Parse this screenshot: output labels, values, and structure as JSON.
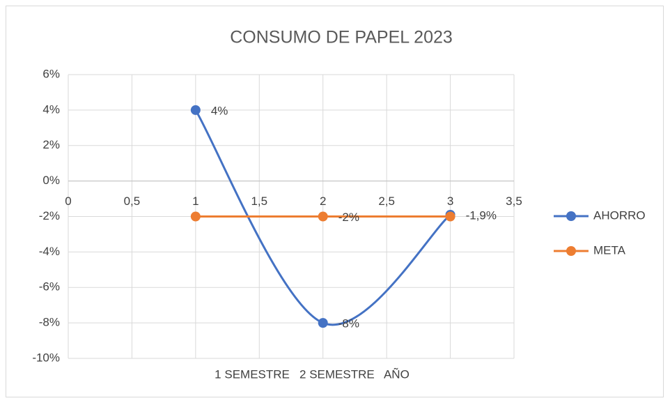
{
  "chart_data": {
    "type": "scatter-smooth",
    "title": "CONSUMO DE PAPEL 2023",
    "x_label": "1 SEMESTRE   2 SEMESTRE   AÑO",
    "series": [
      {
        "name": "AHORRO",
        "color": "#4472c4",
        "x": [
          1,
          2,
          3
        ],
        "values": [
          4,
          -8,
          -1.9
        ],
        "value_labels": [
          "4%",
          "-8%",
          "-1,9%"
        ]
      },
      {
        "name": "META",
        "color": "#ed7d31",
        "x": [
          1,
          2,
          3
        ],
        "values": [
          -2,
          -2,
          -2
        ],
        "value_labels": [
          null,
          "-2%",
          null
        ]
      }
    ],
    "xlim": [
      0,
      3.5
    ],
    "xticks": [
      0,
      {
        "value": 0.5,
        "label": "0,5"
      },
      1,
      {
        "value": 1.5,
        "label": "1,5"
      },
      2,
      {
        "value": 2.5,
        "label": "2,5"
      },
      3,
      {
        "value": 3.5,
        "label": "3,5"
      }
    ],
    "ylim": [
      -10,
      6
    ],
    "yticks": [
      {
        "value": -10,
        "label": "-10%"
      },
      {
        "value": -8,
        "label": "-8%"
      },
      {
        "value": -6,
        "label": "-6%"
      },
      {
        "value": -4,
        "label": "-4%"
      },
      {
        "value": -2,
        "label": "-2%"
      },
      {
        "value": 0,
        "label": "0%"
      },
      {
        "value": 2,
        "label": "2%"
      },
      {
        "value": 4,
        "label": "4%"
      },
      {
        "value": 6,
        "label": "6%"
      }
    ],
    "grid": true,
    "legend": "right",
    "smooth": true
  }
}
